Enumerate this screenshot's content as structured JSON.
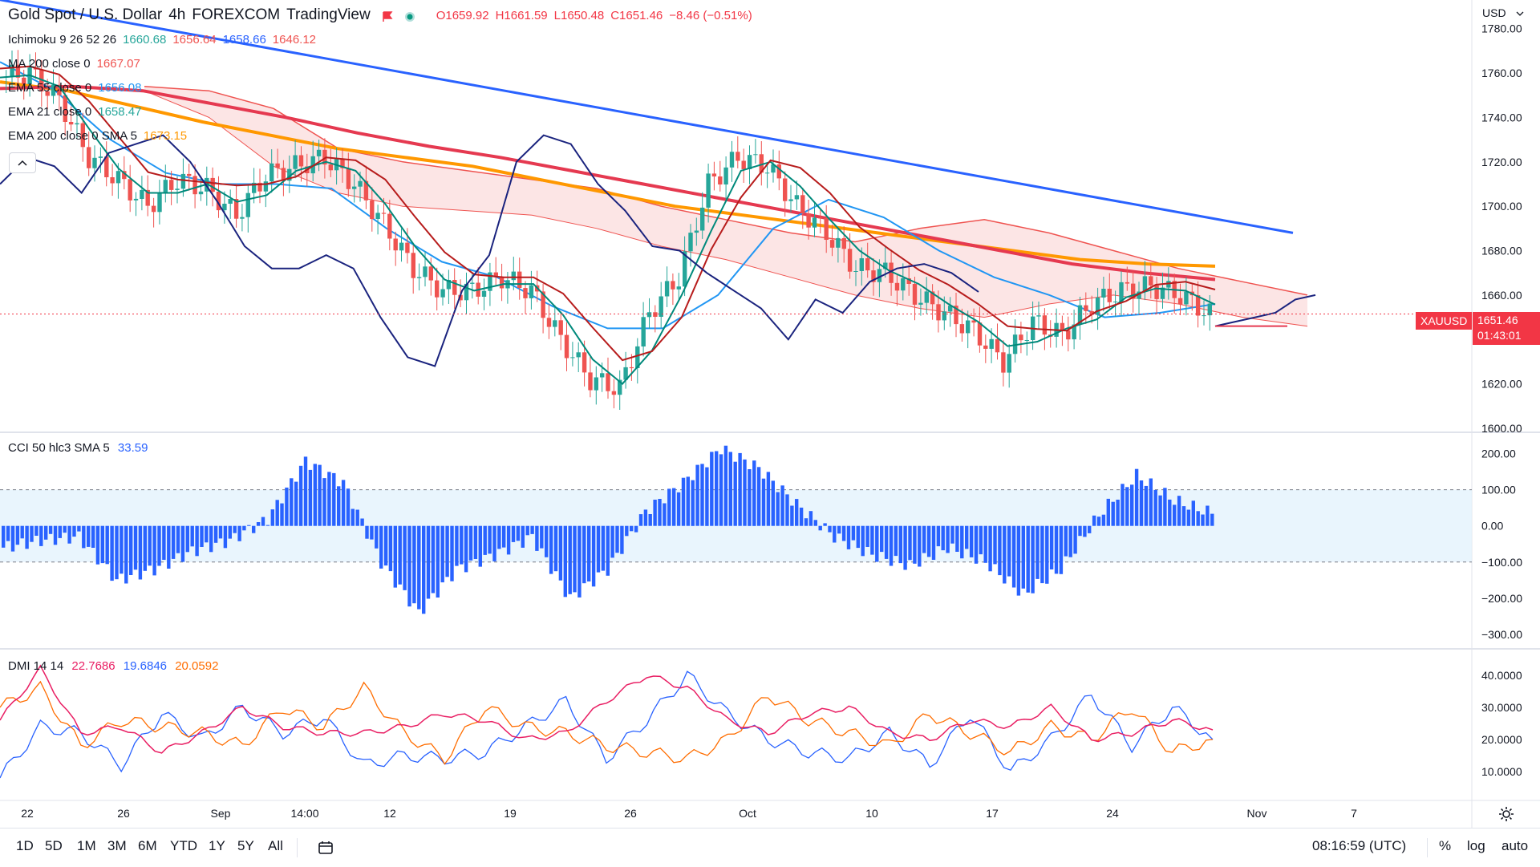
{
  "header": {
    "symbol": "Gold Spot / U.S. Dollar",
    "interval": "4h",
    "exchange": "FOREXCOM",
    "source": "TradingView",
    "open": "O1659.92",
    "high": "H1661.59",
    "low": "L1650.48",
    "close": "C1651.46",
    "change": "−8.46 (−0.51%)",
    "currency": "USD"
  },
  "indicators": [
    {
      "name": "Ichimoku 9 26 52 26",
      "values": [
        "1660.68",
        "1656.64",
        "1658.66",
        "1646.12"
      ],
      "colors": [
        "#26a69a",
        "#ef5350",
        "#2962ff",
        "#ef5350"
      ]
    },
    {
      "name": "MA 200 close 0",
      "values": [
        "1667.07"
      ],
      "colors": [
        "#ef5350"
      ]
    },
    {
      "name": "EMA 55 close 0",
      "values": [
        "1656.08"
      ],
      "colors": [
        "#2196f3"
      ]
    },
    {
      "name": "EMA 21 close 0",
      "values": [
        "1658.47"
      ],
      "colors": [
        "#26a69a"
      ]
    },
    {
      "name": "EMA 200 close 0 SMA 5",
      "values": [
        "1673.15"
      ],
      "colors": [
        "#ff9800"
      ]
    }
  ],
  "cci_legend": {
    "name": "CCI 50 hlc3 SMA 5",
    "value": "33.59",
    "color": "#2962ff"
  },
  "dmi_legend": {
    "name": "DMI 14 14",
    "values": [
      "22.7686",
      "19.6846",
      "20.0592"
    ],
    "colors": [
      "#e91e63",
      "#2962ff",
      "#ff6d00"
    ]
  },
  "price_scale": [
    "1780.00",
    "1760.00",
    "1740.00",
    "1720.00",
    "1700.00",
    "1680.00",
    "1660.00",
    "1640.00",
    "1620.00",
    "1600.00"
  ],
  "cci_scale": [
    "200.00",
    "100.00",
    "0.00",
    "−100.00",
    "−200.00",
    "−300.00"
  ],
  "dmi_scale": [
    "40.0000",
    "30.0000",
    "20.0000",
    "10.0000"
  ],
  "time_labels": [
    "22",
    "26",
    "Sep",
    "14:00",
    "12",
    "19",
    "26",
    "Oct",
    "10",
    "17",
    "24",
    "Nov",
    "7"
  ],
  "last_price": {
    "symbol": "XAUUSD",
    "price": "1651.46",
    "countdown": "01:43:01"
  },
  "bottombar": {
    "timeframes": [
      "1D",
      "5D",
      "1M",
      "3M",
      "6M",
      "YTD",
      "1Y",
      "5Y",
      "All"
    ],
    "clock": "08:16:59 (UTC)",
    "percent": "%",
    "log": "log",
    "auto": "auto"
  },
  "colors": {
    "candle_up": "#26a69a",
    "candle_down": "#ef5350",
    "trendline": "#2962ff",
    "ema200": "#ff9800",
    "ma200": "#e53950",
    "ema55": "#2196f3",
    "ema21": "#26a69a",
    "tenkan": "#00897b",
    "kijun": "#b71c1c",
    "chikou": "#1a237e",
    "cloud_bear": "#fbe0e0",
    "cloud_bull": "#e3f2e6",
    "cci": "#2962ff",
    "dmi_plus": "#2962ff",
    "dmi_minus": "#ff6d00",
    "adx": "#e91e63"
  },
  "chart_data": {
    "type": "line",
    "panes": [
      "price",
      "cci",
      "dmi"
    ],
    "price_ylim": [
      1600,
      1790
    ],
    "cci_ylim": [
      -320,
      230
    ],
    "dmi_ylim": [
      3,
      46
    ],
    "x": [
      0,
      10,
      20,
      30,
      40,
      50,
      60,
      70,
      80,
      90,
      100,
      110,
      120,
      130,
      140,
      150,
      160,
      170,
      180,
      190,
      200,
      210,
      220,
      230,
      240,
      250,
      260,
      270,
      280,
      290,
      300
    ],
    "price_close": [
      1758,
      1760,
      1748,
      1722,
      1712,
      1700,
      1712,
      1708,
      1696,
      1714,
      1718,
      1722,
      1710,
      1692,
      1672,
      1662,
      1662,
      1668,
      1662,
      1640,
      1622,
      1618,
      1652,
      1668,
      1710,
      1722,
      1718,
      1700,
      1688,
      1672,
      1670
    ],
    "price_close_tail": [
      1660,
      1652,
      1644,
      1630,
      1648,
      1642,
      1656,
      1662,
      1664,
      1660,
      1651.46
    ],
    "ema200": [
      1756,
      1752,
      1745,
      1738,
      1732,
      1726,
      1722,
      1718,
      1712,
      1706,
      1700,
      1696,
      1692,
      1688,
      1684,
      1680,
      1676,
      1674,
      1673
    ],
    "ma200": [
      1753,
      1754,
      1752,
      1746,
      1740,
      1733,
      1727,
      1722,
      1716,
      1710,
      1704,
      1698,
      1692,
      1686,
      1680,
      1674,
      1670,
      1667
    ],
    "ema55": [
      1765,
      1752,
      1730,
      1715,
      1710,
      1710,
      1708,
      1690,
      1675,
      1668,
      1655,
      1645,
      1645,
      1660,
      1690,
      1703,
      1695,
      1680,
      1668,
      1660,
      1650,
      1652,
      1656
    ],
    "cci": [
      -60,
      -40,
      -30,
      -150,
      -120,
      -70,
      -40,
      20,
      180,
      120,
      -100,
      -240,
      -120,
      -80,
      -30,
      -200,
      -120,
      40,
      120,
      215,
      160,
      60,
      -30,
      -80,
      -110,
      -60,
      -100,
      -190,
      -120,
      30,
      140,
      70,
      33.59
    ],
    "dmi_plus": [
      8,
      24,
      22,
      12,
      28,
      20,
      30,
      22,
      27,
      12,
      15,
      14,
      16,
      24,
      32,
      14,
      26,
      40,
      28,
      20,
      16,
      14,
      22,
      12,
      28,
      10,
      20,
      34,
      18,
      30,
      20
    ],
    "dmi_minus": [
      30,
      36,
      18,
      26,
      24,
      22,
      18,
      30,
      24,
      36,
      22,
      14,
      30,
      24,
      22,
      18,
      16,
      14,
      20,
      34,
      26,
      22,
      18,
      28,
      22,
      16,
      24,
      20,
      30,
      16,
      20
    ],
    "adx": [
      26,
      42,
      22,
      24,
      16,
      22,
      30,
      24,
      22,
      22,
      24,
      28,
      26,
      20,
      22,
      32,
      40,
      36,
      26,
      22,
      28,
      30,
      22,
      20,
      26,
      24,
      30,
      20,
      22,
      26,
      23
    ]
  }
}
